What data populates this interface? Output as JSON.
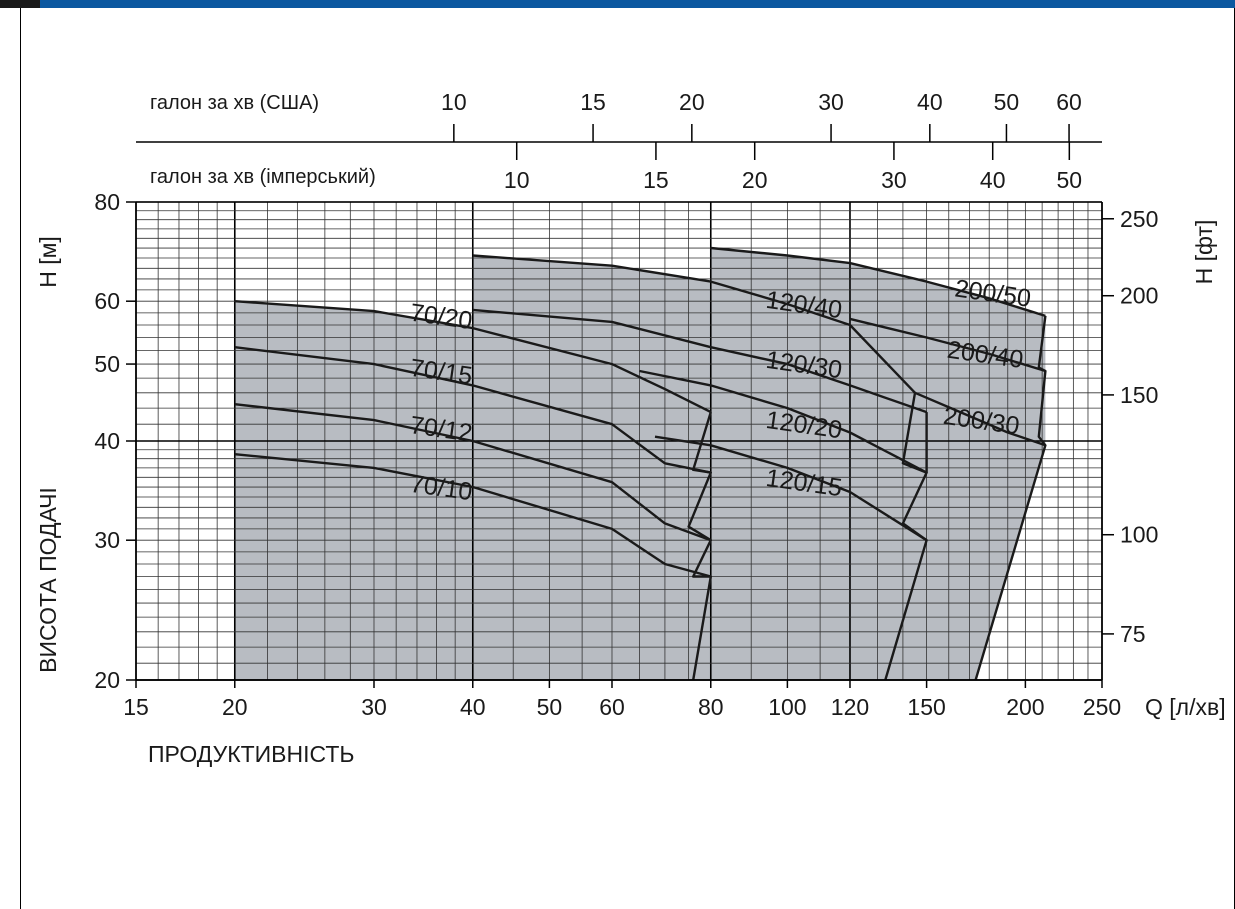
{
  "chart_data": {
    "type": "area",
    "x_scale": "log",
    "y_scale": "log",
    "xlabel": "ПРОДУКТИВНІСТЬ",
    "x_unit": "Q [л/хв]",
    "ylabel": "ВИСОТА ПОДАЧІ",
    "y_unit_left": "H [м]",
    "y_unit_right": "H [фт]",
    "xlim": [
      15,
      250
    ],
    "ylim": [
      20,
      80
    ],
    "x_ticks": [
      "15",
      "20",
      "30",
      "40",
      "50",
      "60",
      "80",
      "100",
      "120",
      "150",
      "200",
      "250"
    ],
    "y_ticks": [
      "20",
      "30",
      "40",
      "50",
      "60",
      "80"
    ],
    "y_ticks_right": [
      "75",
      "100",
      "150",
      "200",
      "250"
    ],
    "top_axis_us_label": "галон за хв (США)",
    "top_axis_us_ticks": [
      "10",
      "15",
      "20",
      "30",
      "40",
      "50",
      "60"
    ],
    "top_axis_imp_label": "галон за хв (імперський)",
    "top_axis_imp_ticks": [
      "10",
      "15",
      "20",
      "30",
      "40",
      "50"
    ],
    "grid": true,
    "fill_color": "#b8bcc2",
    "series": [
      {
        "name": "70/20",
        "points": [
          [
            20,
            60
          ],
          [
            30,
            58.3
          ],
          [
            40,
            55.5
          ],
          [
            60,
            50
          ],
          [
            70,
            46.5
          ],
          [
            80,
            43.5
          ]
        ]
      },
      {
        "name": "70/15",
        "points": [
          [
            20,
            52.5
          ],
          [
            30,
            50
          ],
          [
            40,
            47
          ],
          [
            60,
            42
          ],
          [
            70,
            37.5
          ],
          [
            80,
            36.5
          ]
        ]
      },
      {
        "name": "70/12",
        "points": [
          [
            20,
            44.5
          ],
          [
            30,
            42.5
          ],
          [
            40,
            40
          ],
          [
            60,
            35.5
          ],
          [
            70,
            31.5
          ],
          [
            80,
            30
          ]
        ]
      },
      {
        "name": "70/10",
        "points": [
          [
            20,
            38.5
          ],
          [
            30,
            37
          ],
          [
            40,
            35
          ],
          [
            60,
            31
          ],
          [
            70,
            28
          ],
          [
            80,
            27
          ]
        ]
      },
      {
        "name": "120/40",
        "points": [
          [
            40,
            68.5
          ],
          [
            60,
            66.5
          ],
          [
            80,
            63.5
          ],
          [
            100,
            59.5
          ],
          [
            120,
            56
          ],
          [
            145,
            46
          ]
        ]
      },
      {
        "name": "120/30",
        "points": [
          [
            40,
            58.5
          ],
          [
            60,
            56.5
          ],
          [
            80,
            52.5
          ],
          [
            100,
            50
          ],
          [
            120,
            47
          ],
          [
            150,
            43.5
          ]
        ]
      },
      {
        "name": "120/20",
        "points": [
          [
            65,
            49
          ],
          [
            80,
            47
          ],
          [
            100,
            44
          ],
          [
            120,
            41
          ],
          [
            150,
            36.5
          ]
        ]
      },
      {
        "name": "120/15",
        "points": [
          [
            68,
            40.5
          ],
          [
            80,
            39.5
          ],
          [
            100,
            37
          ],
          [
            120,
            34.5
          ],
          [
            150,
            30
          ]
        ]
      },
      {
        "name": "200/50",
        "points": [
          [
            80,
            70
          ],
          [
            100,
            68.5
          ],
          [
            120,
            67
          ],
          [
            150,
            63.5
          ],
          [
            180,
            60.5
          ],
          [
            212,
            57.5
          ]
        ]
      },
      {
        "name": "200/40",
        "points": [
          [
            120,
            57
          ],
          [
            150,
            54
          ],
          [
            180,
            51.5
          ],
          [
            212,
            49
          ]
        ]
      },
      {
        "name": "200/30",
        "points": [
          [
            145,
            46
          ],
          [
            170,
            43
          ],
          [
            190,
            41
          ],
          [
            212,
            39.5
          ]
        ]
      }
    ]
  }
}
